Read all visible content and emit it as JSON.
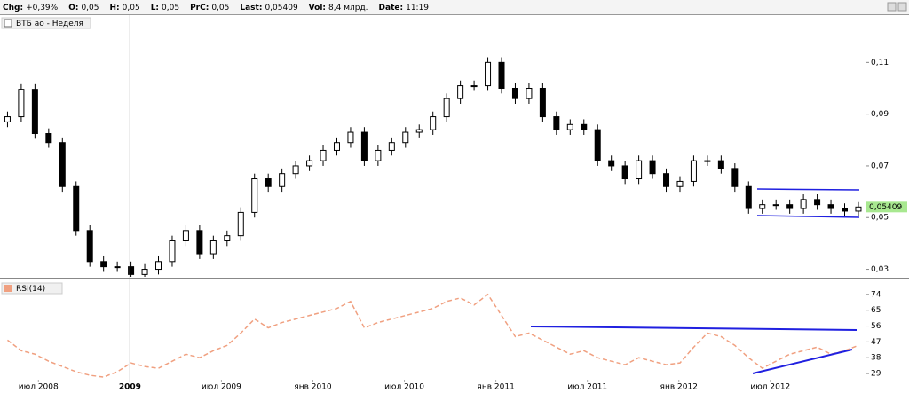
{
  "header": {
    "items": [
      {
        "label": "Chg:",
        "value": "+0,39%"
      },
      {
        "label": "O:",
        "value": "0,05"
      },
      {
        "label": "H:",
        "value": "0,05"
      },
      {
        "label": "L:",
        "value": "0,05"
      },
      {
        "label": "PrC:",
        "value": "0,05"
      },
      {
        "label": "Last:",
        "value": "0,05409"
      },
      {
        "label": "Vol:",
        "value": "8,4 млрд."
      },
      {
        "label": "Date:",
        "value": "11:19"
      }
    ]
  },
  "chart_data": [
    {
      "type": "candlestick",
      "title": "ВТБ ао - Неделя",
      "x": [
        2008.331,
        2008.406,
        2008.481,
        2008.556,
        2008.631,
        2008.706,
        2008.781,
        2008.856,
        2008.931,
        2009.006,
        2009.081,
        2009.156,
        2009.231,
        2009.306,
        2009.381,
        2009.456,
        2009.531,
        2009.606,
        2009.681,
        2009.756,
        2009.831,
        2009.906,
        2009.981,
        2010.056,
        2010.131,
        2010.206,
        2010.281,
        2010.356,
        2010.431,
        2010.506,
        2010.581,
        2010.656,
        2010.731,
        2010.806,
        2010.881,
        2010.956,
        2011.031,
        2011.106,
        2011.181,
        2011.256,
        2011.331,
        2011.406,
        2011.481,
        2011.556,
        2011.631,
        2011.706,
        2011.781,
        2011.856,
        2011.931,
        2012.006,
        2012.081,
        2012.156,
        2012.231,
        2012.306,
        2012.381,
        2012.456,
        2012.531,
        2012.606,
        2012.681,
        2012.756,
        2012.831,
        2012.906,
        2012.981
      ],
      "open": [
        0.087,
        0.089,
        0.0996,
        0.0825,
        0.079,
        0.062,
        0.045,
        0.033,
        0.031,
        0.031,
        0.028,
        0.03,
        0.033,
        0.041,
        0.045,
        0.036,
        0.041,
        0.043,
        0.052,
        0.065,
        0.062,
        0.067,
        0.07,
        0.072,
        0.076,
        0.079,
        0.083,
        0.072,
        0.076,
        0.079,
        0.083,
        0.084,
        0.089,
        0.096,
        0.101,
        0.101,
        0.11,
        0.1,
        0.096,
        0.1,
        0.089,
        0.084,
        0.086,
        0.084,
        0.072,
        0.07,
        0.065,
        0.072,
        0.067,
        0.062,
        0.064,
        0.072,
        0.072,
        0.069,
        0.062,
        0.0535,
        0.055,
        0.055,
        0.0535,
        0.057,
        0.055,
        0.0535,
        0.0525
      ],
      "high": [
        0.091,
        0.1016,
        0.1016,
        0.0845,
        0.081,
        0.064,
        0.047,
        0.035,
        0.033,
        0.033,
        0.032,
        0.035,
        0.043,
        0.047,
        0.047,
        0.043,
        0.045,
        0.054,
        0.067,
        0.067,
        0.069,
        0.072,
        0.074,
        0.078,
        0.081,
        0.085,
        0.085,
        0.078,
        0.081,
        0.085,
        0.086,
        0.091,
        0.098,
        0.103,
        0.103,
        0.112,
        0.112,
        0.102,
        0.102,
        0.102,
        0.091,
        0.088,
        0.088,
        0.086,
        0.074,
        0.072,
        0.074,
        0.074,
        0.069,
        0.066,
        0.074,
        0.074,
        0.074,
        0.071,
        0.064,
        0.057,
        0.057,
        0.057,
        0.059,
        0.059,
        0.057,
        0.0555,
        0.056
      ],
      "low": [
        0.085,
        0.087,
        0.0805,
        0.077,
        0.06,
        0.043,
        0.031,
        0.029,
        0.029,
        0.026,
        0.026,
        0.028,
        0.031,
        0.039,
        0.034,
        0.034,
        0.039,
        0.041,
        0.05,
        0.06,
        0.06,
        0.065,
        0.068,
        0.07,
        0.074,
        0.077,
        0.07,
        0.07,
        0.074,
        0.077,
        0.081,
        0.082,
        0.087,
        0.094,
        0.099,
        0.099,
        0.098,
        0.094,
        0.094,
        0.087,
        0.082,
        0.082,
        0.082,
        0.07,
        0.068,
        0.063,
        0.063,
        0.065,
        0.06,
        0.06,
        0.062,
        0.07,
        0.067,
        0.06,
        0.0515,
        0.0515,
        0.053,
        0.0515,
        0.0515,
        0.053,
        0.0515,
        0.0505,
        0.0505
      ],
      "close": [
        0.089,
        0.0996,
        0.0825,
        0.079,
        0.062,
        0.045,
        0.033,
        0.031,
        0.031,
        0.028,
        0.03,
        0.033,
        0.041,
        0.045,
        0.036,
        0.041,
        0.043,
        0.052,
        0.065,
        0.062,
        0.067,
        0.07,
        0.072,
        0.076,
        0.079,
        0.083,
        0.072,
        0.076,
        0.079,
        0.083,
        0.084,
        0.089,
        0.096,
        0.101,
        0.101,
        0.11,
        0.1,
        0.096,
        0.1,
        0.089,
        0.084,
        0.086,
        0.084,
        0.072,
        0.07,
        0.065,
        0.072,
        0.067,
        0.062,
        0.064,
        0.072,
        0.072,
        0.069,
        0.062,
        0.0535,
        0.055,
        0.055,
        0.0535,
        0.057,
        0.055,
        0.0535,
        0.0525,
        0.05409
      ],
      "last_label": "0,05409",
      "last_color": "#a8e890",
      "xlim": [
        2008.29,
        2013.02
      ],
      "ylim": [
        0.0271,
        0.1283
      ],
      "yticks": [
        {
          "value": 0.11,
          "label": "0,11"
        },
        {
          "value": 0.09,
          "label": "0,09"
        },
        {
          "value": 0.07,
          "label": "0,07"
        },
        {
          "value": 0.05,
          "label": "0,05"
        },
        {
          "value": 0.03,
          "label": "0,03"
        }
      ]
    },
    {
      "type": "line",
      "title": "RSI(14)",
      "color": "#f0a080",
      "x": [
        2008.331,
        2008.406,
        2008.481,
        2008.556,
        2008.631,
        2008.706,
        2008.781,
        2008.856,
        2008.931,
        2009.006,
        2009.081,
        2009.156,
        2009.231,
        2009.306,
        2009.381,
        2009.456,
        2009.531,
        2009.606,
        2009.681,
        2009.756,
        2009.831,
        2009.906,
        2009.981,
        2010.056,
        2010.131,
        2010.206,
        2010.281,
        2010.356,
        2010.431,
        2010.506,
        2010.581,
        2010.656,
        2010.731,
        2010.806,
        2010.881,
        2010.956,
        2011.031,
        2011.106,
        2011.181,
        2011.256,
        2011.331,
        2011.406,
        2011.481,
        2011.556,
        2011.631,
        2011.706,
        2011.781,
        2011.856,
        2011.931,
        2012.006,
        2012.081,
        2012.156,
        2012.231,
        2012.306,
        2012.381,
        2012.456,
        2012.531,
        2012.606,
        2012.681,
        2012.756,
        2012.831,
        2012.906,
        2012.981
      ],
      "values": [
        48,
        42,
        40,
        36,
        33,
        30,
        28,
        27,
        30,
        35,
        33,
        32,
        36,
        40,
        38,
        42,
        45,
        52,
        60,
        55,
        58,
        60,
        62,
        64,
        66,
        70,
        55,
        58,
        60,
        62,
        64,
        66,
        70,
        72,
        68,
        74,
        62,
        50,
        52,
        48,
        44,
        40,
        42,
        38,
        36,
        34,
        38,
        36,
        34,
        35,
        44,
        52,
        50,
        45,
        38,
        32,
        36,
        40,
        42,
        44,
        40,
        42,
        45
      ],
      "xlim": [
        2008.29,
        2013.02
      ],
      "ylim": [
        25.5,
        82
      ],
      "yticks": [
        74,
        65,
        56,
        47,
        38,
        29
      ],
      "xticks": [
        {
          "value": 2008.5,
          "label": "июл 2008"
        },
        {
          "value": 2009.0,
          "label": "2009"
        },
        {
          "value": 2009.5,
          "label": "июл 2009"
        },
        {
          "value": 2010.0,
          "label": "янв 2010"
        },
        {
          "value": 2010.5,
          "label": "июл 2010"
        },
        {
          "value": 2011.0,
          "label": "янв 2011"
        },
        {
          "value": 2011.5,
          "label": "июл 2011"
        },
        {
          "value": 2012.0,
          "label": "янв 2012"
        },
        {
          "value": 2012.5,
          "label": "июл 2012"
        }
      ]
    }
  ]
}
